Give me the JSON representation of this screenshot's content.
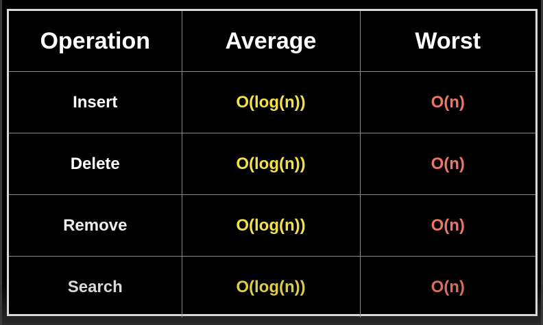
{
  "table": {
    "headers": [
      "Operation",
      "Average",
      "Worst"
    ],
    "rows": [
      {
        "operation": "Insert",
        "average": "O(log(n))",
        "worst": "O(n)"
      },
      {
        "operation": "Delete",
        "average": "O(log(n))",
        "worst": "O(n)"
      },
      {
        "operation": "Remove",
        "average": "O(log(n))",
        "worst": "O(n)"
      },
      {
        "operation": "Search",
        "average": "O(log(n))",
        "worst": "O(n)"
      }
    ]
  },
  "colors": {
    "average_text": "#f2e14a",
    "worst_text": "#ee7567",
    "grid_lines": "#8c8c8c",
    "outer_border": "#d9d9d9",
    "background": "#000000"
  }
}
